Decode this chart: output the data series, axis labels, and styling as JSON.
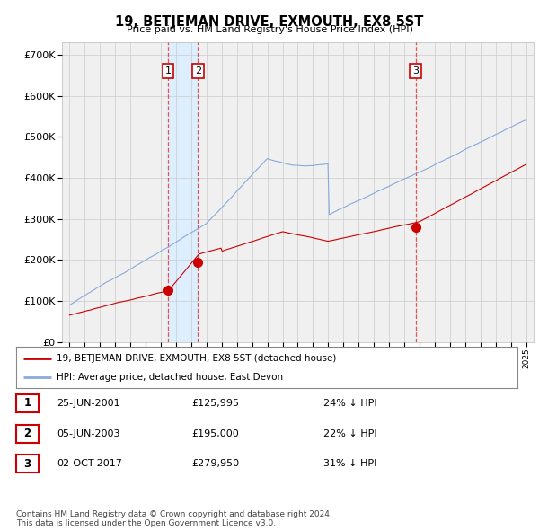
{
  "title": "19, BETJEMAN DRIVE, EXMOUTH, EX8 5ST",
  "subtitle": "Price paid vs. HM Land Registry's House Price Index (HPI)",
  "ytick_values": [
    0,
    100000,
    200000,
    300000,
    400000,
    500000,
    600000,
    700000
  ],
  "ylim": [
    0,
    730000
  ],
  "xlim_start": 1994.5,
  "xlim_end": 2025.5,
  "sale_points": [
    {
      "num": "1",
      "year": 2001.48,
      "price": 125995
    },
    {
      "num": "2",
      "year": 2003.43,
      "price": 195000
    },
    {
      "num": "3",
      "year": 2017.75,
      "price": 279950
    }
  ],
  "vline_years": [
    2001.48,
    2003.43,
    2017.75
  ],
  "shade_between": [
    2001.48,
    2003.43
  ],
  "legend_entries": [
    "19, BETJEMAN DRIVE, EXMOUTH, EX8 5ST (detached house)",
    "HPI: Average price, detached house, East Devon"
  ],
  "table_rows": [
    {
      "num": "1",
      "date": "25-JUN-2001",
      "price": "£125,995",
      "hpi": "24% ↓ HPI"
    },
    {
      "num": "2",
      "date": "05-JUN-2003",
      "price": "£195,000",
      "hpi": "22% ↓ HPI"
    },
    {
      "num": "3",
      "date": "02-OCT-2017",
      "price": "£279,950",
      "hpi": "31% ↓ HPI"
    }
  ],
  "footer": "Contains HM Land Registry data © Crown copyright and database right 2024.\nThis data is licensed under the Open Government Licence v3.0.",
  "red_color": "#cc0000",
  "blue_color": "#88aadd",
  "vline_color": "#dd4444",
  "shade_color": "#ddeeff",
  "grid_color": "#cccccc",
  "bg_color": "#ffffff",
  "plot_bg_color": "#f0f0f0"
}
